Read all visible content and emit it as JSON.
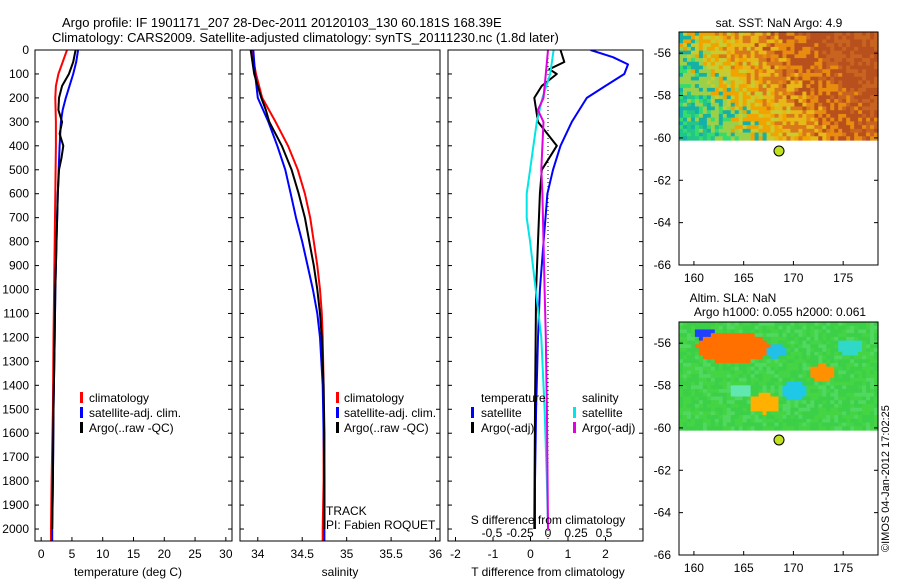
{
  "header": {
    "line1": "Argo profile: IF 1901171_207 28-Dec-2011 20120103_130 60.181S 168.39E",
    "line2": "Climatology: CARS2009. Satellite-adjusted climatology: synTS_20111230.nc (1.8d later)"
  },
  "credit": "©IMOS 04-Jan-2012 17:02:25",
  "colors": {
    "climatology": "#ff0000",
    "satellite": "#0000ff",
    "argo": "#000000",
    "satellite_salinity": "#00e5e5",
    "argo_salinity": "#e000e0"
  },
  "chart_data": [
    {
      "type": "line",
      "panel": "temperature",
      "xlabel": "temperature (deg C)",
      "ylabel": "",
      "xlim": [
        -1,
        31
      ],
      "ylim": [
        2050,
        0
      ],
      "xticks": [
        0,
        5,
        10,
        15,
        20,
        25,
        30
      ],
      "yticks": [
        0,
        100,
        200,
        300,
        400,
        500,
        600,
        700,
        800,
        900,
        1000,
        1100,
        1200,
        1300,
        1400,
        1500,
        1600,
        1700,
        1800,
        1900,
        2000
      ],
      "legend": [
        "climatology",
        "satellite-adj. clim.",
        "Argo(..raw -QC)"
      ],
      "legend_position": "lower-right",
      "series": [
        {
          "name": "climatology",
          "color": "#ff0000",
          "depth": [
            0,
            50,
            100,
            150,
            200,
            250,
            300,
            400,
            600,
            800,
            1000,
            1200,
            1500,
            1800,
            2000,
            2050
          ],
          "values": [
            4.2,
            3.5,
            2.8,
            2.4,
            2.3,
            2.35,
            2.4,
            2.4,
            2.3,
            2.2,
            2.1,
            2.0,
            1.9,
            1.7,
            1.6,
            1.6
          ]
        },
        {
          "name": "satellite-adj. clim.",
          "color": "#0000ff",
          "depth": [
            0,
            50,
            100,
            150,
            200,
            250,
            300,
            400,
            600,
            800,
            1000,
            1200,
            1500,
            1800,
            2000,
            2050
          ],
          "values": [
            6.0,
            5.7,
            5.2,
            4.6,
            4.0,
            3.5,
            3.2,
            3.0,
            2.7,
            2.5,
            2.3,
            2.2,
            2.0,
            1.9,
            1.8,
            1.8
          ]
        },
        {
          "name": "Argo(..raw -QC)",
          "color": "#000000",
          "depth": [
            0,
            50,
            100,
            150,
            200,
            250,
            300,
            350,
            400,
            450,
            500,
            600,
            800,
            1000,
            1200,
            1500,
            1800,
            2000
          ],
          "values": [
            5.6,
            5.2,
            4.5,
            3.4,
            2.9,
            2.8,
            3.4,
            3.0,
            3.6,
            3.3,
            2.9,
            2.7,
            2.5,
            2.3,
            2.2,
            2.0,
            1.9,
            1.8
          ]
        }
      ]
    },
    {
      "type": "line",
      "panel": "salinity",
      "xlabel": "salinity",
      "ylabel": "",
      "xlim": [
        33.8,
        36.05
      ],
      "ylim": [
        2050,
        0
      ],
      "xticks": [
        34,
        34.5,
        35,
        35.5,
        36
      ],
      "xticklabels": [
        "34",
        "34.5",
        "35",
        "35.5",
        "36"
      ],
      "legend": [
        "climatology",
        "satellite-adj. clim.",
        "Argo(..raw -QC)"
      ],
      "legend_position": "lower-right",
      "annotations": [
        "TRACK",
        "PI: Fabien ROQUET"
      ],
      "series": [
        {
          "name": "climatology",
          "color": "#ff0000",
          "depth": [
            0,
            100,
            200,
            300,
            400,
            500,
            600,
            700,
            800,
            900,
            1000,
            1100,
            1200,
            1400,
            1600,
            1800,
            2000,
            2050
          ],
          "values": [
            33.93,
            33.98,
            34.05,
            34.2,
            34.34,
            34.45,
            34.53,
            34.59,
            34.63,
            34.67,
            34.7,
            34.72,
            34.73,
            34.74,
            34.74,
            34.74,
            34.73,
            34.73
          ]
        },
        {
          "name": "satellite-adj. clim.",
          "color": "#0000ff",
          "depth": [
            0,
            100,
            200,
            300,
            400,
            500,
            600,
            700,
            800,
            900,
            1000,
            1100,
            1200,
            1400,
            1600,
            1800,
            2000,
            2050
          ],
          "values": [
            33.95,
            33.97,
            34.0,
            34.12,
            34.22,
            34.31,
            34.37,
            34.43,
            34.5,
            34.56,
            34.62,
            34.67,
            34.7,
            34.73,
            34.74,
            34.75,
            34.75,
            34.75
          ]
        },
        {
          "name": "Argo(..raw -QC)",
          "color": "#000000",
          "depth": [
            0,
            100,
            200,
            250,
            300,
            400,
            500,
            600,
            700,
            800,
            900,
            1000,
            1100,
            1200,
            1400,
            1600,
            1800,
            2000
          ],
          "values": [
            33.92,
            33.96,
            34.04,
            34.09,
            34.13,
            34.27,
            34.38,
            34.46,
            34.53,
            34.58,
            34.63,
            34.67,
            34.7,
            34.72,
            34.74,
            34.75,
            34.75,
            34.75
          ]
        }
      ]
    },
    {
      "type": "line",
      "panel": "differences",
      "xlabel": "T difference from climatology",
      "x2label": "S difference from climatology",
      "xlim": [
        -2.2,
        3.0
      ],
      "ylim": [
        2050,
        0
      ],
      "xticks": [
        -2,
        -1,
        0,
        1,
        2
      ],
      "x2ticks": [
        -0.5,
        -0.25,
        0,
        0.25,
        0.5
      ],
      "x2ticklabels": [
        "-0.5",
        "-0.25",
        "0",
        "0.25",
        "0.5"
      ],
      "legend_temperature": {
        "title": "temperature",
        "items": [
          "satellite",
          "Argo(-adj)"
        ]
      },
      "legend_salinity": {
        "title": "salinity",
        "items": [
          "satellite",
          "Argo(-adj)"
        ]
      },
      "series": [
        {
          "name": "satellite",
          "group": "temperature",
          "color": "#0000ff",
          "depth": [
            0,
            30,
            60,
            100,
            150,
            200,
            300,
            400,
            500,
            600,
            800,
            1000,
            1200,
            1500,
            1800,
            2000
          ],
          "values": [
            1.6,
            2.2,
            2.6,
            2.5,
            2.0,
            1.5,
            1.1,
            0.8,
            0.6,
            0.45,
            0.35,
            0.25,
            0.2,
            0.15,
            0.12,
            0.12
          ]
        },
        {
          "name": "Argo(-adj)",
          "group": "temperature",
          "color": "#000000",
          "depth": [
            0,
            50,
            80,
            100,
            150,
            200,
            300,
            400,
            500,
            600,
            800,
            1000,
            1500,
            2000
          ],
          "values": [
            0.8,
            0.9,
            0.5,
            0.7,
            0.3,
            0.1,
            0.2,
            0.7,
            0.3,
            0.25,
            0.2,
            0.15,
            0.12,
            0.1
          ]
        },
        {
          "name": "satellite",
          "group": "salinity",
          "color": "#00e5e5",
          "depth": [
            0,
            100,
            200,
            300,
            400,
            500,
            600,
            700,
            800,
            1000,
            1200,
            1500,
            1800,
            2000
          ],
          "values": [
            0.05,
            0.02,
            -0.05,
            -0.1,
            -0.13,
            -0.16,
            -0.19,
            -0.19,
            -0.16,
            -0.11,
            -0.06,
            -0.03,
            -0.01,
            0.0
          ]
        },
        {
          "name": "Argo(-adj)",
          "group": "salinity",
          "color": "#e000e0",
          "depth": [
            0,
            100,
            200,
            250,
            300,
            400,
            500,
            600,
            800,
            1000,
            1200,
            1500,
            2000
          ],
          "values": [
            0.0,
            -0.02,
            -0.04,
            -0.09,
            -0.04,
            -0.05,
            -0.06,
            -0.05,
            -0.04,
            -0.03,
            -0.02,
            -0.01,
            0.0
          ]
        }
      ]
    },
    {
      "type": "heatmap",
      "panel": "sst_map",
      "title": "sat. SST: NaN Argo: 4.9",
      "xlim": [
        158.5,
        178.5
      ],
      "ylim": [
        -66,
        -55
      ],
      "xticks": [
        160,
        165,
        170,
        175
      ],
      "yticks": [
        -56,
        -58,
        -60,
        -62,
        -64,
        -66
      ],
      "data_extent_lat": [
        -60.1,
        -55
      ],
      "marker": {
        "lon": 168.39,
        "lat": -60.181
      }
    },
    {
      "type": "heatmap",
      "panel": "sla_map",
      "title": "Altim. SLA: NaN",
      "subtitle": "Argo h1000: 0.055 h2000: 0.061",
      "xlim": [
        158.5,
        178.5
      ],
      "ylim": [
        -66,
        -55
      ],
      "xticks": [
        160,
        165,
        170,
        175
      ],
      "yticks": [
        -56,
        -58,
        -60,
        -62,
        -64,
        -66
      ],
      "data_extent_lat": [
        -60.1,
        -55
      ],
      "marker": {
        "lon": 168.39,
        "lat": -60.181
      }
    }
  ]
}
